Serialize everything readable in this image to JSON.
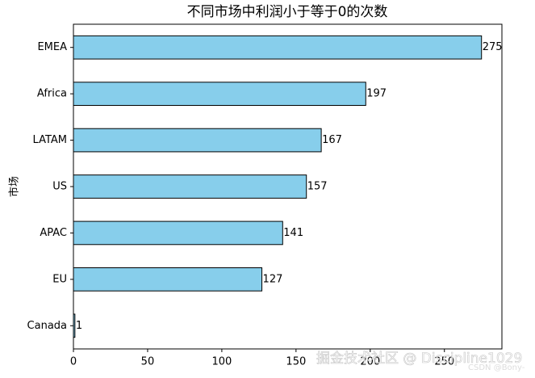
{
  "chart_data": {
    "type": "barh",
    "title": "不同市场中利润小于等于0的次数",
    "ylabel": "市场",
    "categories": [
      "EMEA",
      "Africa",
      "LATAM",
      "US",
      "APAC",
      "EU",
      "Canada"
    ],
    "values": [
      275,
      197,
      167,
      157,
      141,
      127,
      1
    ],
    "color": "#87ceeb",
    "edgecolor": "#000000",
    "xlim": [
      0,
      288.75
    ],
    "xticks": [
      0,
      50,
      100,
      150,
      200,
      250
    ]
  },
  "watermark": [
    "掘金技术社区 @ Discipline1029",
    "CSDN @Bony-"
  ]
}
